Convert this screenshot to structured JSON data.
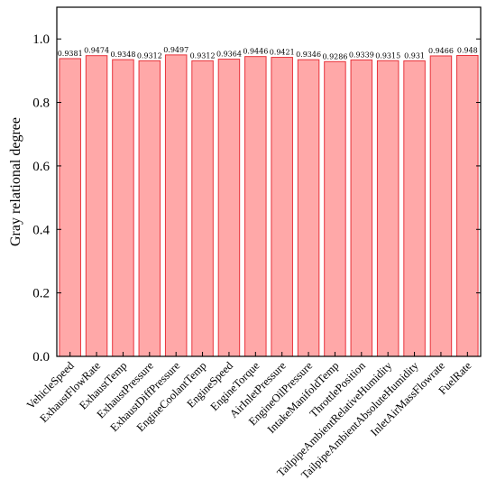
{
  "chart_data": {
    "type": "bar",
    "title": "",
    "xlabel": "",
    "ylabel": "Gray relational degree",
    "ylim": [
      0,
      1.1
    ],
    "yticks": [
      0.0,
      0.2,
      0.4,
      0.6,
      0.8,
      1.0
    ],
    "ytick_labels": [
      "0.0",
      "0.2",
      "0.4",
      "0.6",
      "0.8",
      "1.0"
    ],
    "categories": [
      "VehicleSpeed",
      "ExhaustFlowRate",
      "ExhaustTemp",
      "ExhaustPressure",
      "ExhaustDiffPressure",
      "EngineCoolantTemp",
      "EngineSpeed",
      "EngineTorque",
      "AirInletPressure",
      "EngineOilPressure",
      "IntakeManifoldTemp",
      "ThrottlePosition",
      "TailpipeAmbientRelativeHumidity",
      "TailpipeAmbientAbsoluteHumidity",
      "InletAirMassFlowrate",
      "FuelRate"
    ],
    "values": [
      0.9381,
      0.9474,
      0.9348,
      0.9312,
      0.9497,
      0.9312,
      0.9364,
      0.9446,
      0.9421,
      0.9346,
      0.9286,
      0.9339,
      0.9315,
      0.931,
      0.9466,
      0.948
    ],
    "value_labels": [
      "0.9381",
      "0.9474",
      "0.9348",
      "0.9312",
      "0.9497",
      "0.9312",
      "0.9364",
      "0.9446",
      "0.9421",
      "0.9346",
      "0.9286",
      "0.9339",
      "0.9315",
      "0.931",
      "0.9466",
      "0.948"
    ],
    "bar_fill": "#ffa8a8",
    "bar_edge": "#e8333b",
    "grid": false,
    "legend": "none"
  }
}
